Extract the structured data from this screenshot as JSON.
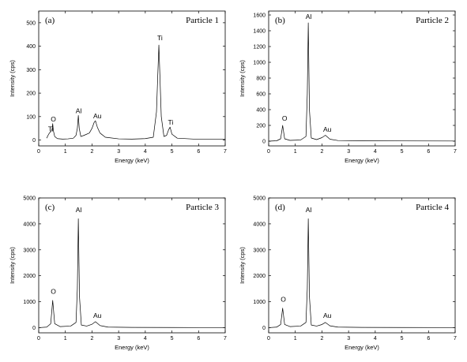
{
  "chart_data": [
    {
      "type": "line",
      "panel_label": "(a)",
      "title": "Particle 1",
      "xlabel": "Energy (keV)",
      "ylabel": "Intensity (cps)",
      "xlim": [
        0,
        7
      ],
      "ylim": [
        -25,
        550
      ],
      "xticks": [
        0,
        1,
        2,
        3,
        4,
        5,
        6,
        7
      ],
      "yticks": [
        0,
        100,
        200,
        300,
        400,
        500
      ],
      "series": [
        {
          "values_x": [
            0.3,
            0.35,
            0.4,
            0.45,
            0.5,
            0.525,
            0.55,
            0.6,
            0.7,
            0.9,
            1.1,
            1.3,
            1.4,
            1.45,
            1.487,
            1.52,
            1.58,
            1.7,
            1.9,
            2.0,
            2.08,
            2.13,
            2.2,
            2.3,
            2.5,
            3.0,
            3.5,
            4.0,
            4.3,
            4.42,
            4.51,
            4.6,
            4.7,
            4.8,
            4.88,
            4.93,
            5.0,
            5.2,
            6.0,
            7.0
          ],
          "values_y": [
            8,
            20,
            30,
            35,
            45,
            70,
            40,
            15,
            6,
            4,
            5,
            8,
            20,
            50,
            105,
            50,
            15,
            20,
            30,
            50,
            75,
            82,
            55,
            30,
            12,
            5,
            4,
            6,
            12,
            120,
            405,
            100,
            15,
            20,
            45,
            55,
            25,
            8,
            3,
            3
          ]
        }
      ],
      "annotations": [
        {
          "text": "O",
          "x": 0.55,
          "y": 80
        },
        {
          "text": "Ti",
          "x": 0.45,
          "y": 38
        },
        {
          "text": "Al",
          "x": 1.5,
          "y": 115
        },
        {
          "text": "Au",
          "x": 2.2,
          "y": 92
        },
        {
          "text": "Ti",
          "x": 4.55,
          "y": 425
        },
        {
          "text": "Ti",
          "x": 4.95,
          "y": 65
        }
      ]
    },
    {
      "type": "line",
      "panel_label": "(b)",
      "title": "Particle 2",
      "xlabel": "Energy (keV)",
      "ylabel": "Intensity (cps)",
      "xlim": [
        0,
        7
      ],
      "ylim": [
        -60,
        1650
      ],
      "xticks": [
        0,
        1,
        2,
        3,
        4,
        5,
        6,
        7
      ],
      "yticks": [
        0,
        200,
        400,
        600,
        800,
        1000,
        1200,
        1400,
        1600
      ],
      "series": [
        {
          "values_x": [
            0.0,
            0.3,
            0.45,
            0.525,
            0.6,
            0.8,
            1.2,
            1.4,
            1.45,
            1.487,
            1.53,
            1.6,
            1.8,
            2.0,
            2.13,
            2.3,
            2.6,
            3.5,
            5.0,
            7.0
          ],
          "values_y": [
            0,
            5,
            30,
            200,
            30,
            10,
            15,
            60,
            600,
            1500,
            400,
            40,
            20,
            45,
            75,
            25,
            8,
            5,
            3,
            2
          ]
        }
      ],
      "annotations": [
        {
          "text": "O",
          "x": 0.6,
          "y": 260
        },
        {
          "text": "Al",
          "x": 1.5,
          "y": 1550
        },
        {
          "text": "Au",
          "x": 2.2,
          "y": 120
        }
      ]
    },
    {
      "type": "line",
      "panel_label": "(c)",
      "title": "Particle 3",
      "xlabel": "Energy (keV)",
      "ylabel": "Intensity (cps)",
      "xlim": [
        0,
        7
      ],
      "ylim": [
        -200,
        5000
      ],
      "xticks": [
        0,
        1,
        2,
        3,
        4,
        5,
        6,
        7
      ],
      "yticks": [
        0,
        1000,
        2000,
        3000,
        4000,
        5000
      ],
      "series": [
        {
          "values_x": [
            0.0,
            0.3,
            0.45,
            0.525,
            0.6,
            0.8,
            1.2,
            1.4,
            1.45,
            1.487,
            1.53,
            1.6,
            1.8,
            2.0,
            2.13,
            2.3,
            2.6,
            3.5,
            5.0,
            7.0
          ],
          "values_y": [
            0,
            20,
            150,
            1050,
            150,
            40,
            60,
            200,
            1500,
            4200,
            1200,
            100,
            60,
            130,
            230,
            80,
            20,
            10,
            5,
            3
          ]
        }
      ],
      "annotations": [
        {
          "text": "O",
          "x": 0.55,
          "y": 1300
        },
        {
          "text": "Al",
          "x": 1.5,
          "y": 4450
        },
        {
          "text": "Au",
          "x": 2.2,
          "y": 380
        }
      ]
    },
    {
      "type": "line",
      "panel_label": "(d)",
      "title": "Particle 4",
      "xlabel": "Energy (keV)",
      "ylabel": "Intensity (cps)",
      "xlim": [
        0,
        7
      ],
      "ylim": [
        -200,
        5000
      ],
      "xticks": [
        0,
        1,
        2,
        3,
        4,
        5,
        6,
        7
      ],
      "yticks": [
        0,
        1000,
        2000,
        3000,
        4000,
        5000
      ],
      "series": [
        {
          "values_x": [
            0.0,
            0.3,
            0.45,
            0.525,
            0.6,
            0.8,
            1.2,
            1.4,
            1.45,
            1.487,
            1.53,
            1.6,
            1.8,
            2.0,
            2.13,
            2.3,
            2.6,
            3.5,
            5.0,
            7.0
          ],
          "values_y": [
            0,
            20,
            120,
            750,
            120,
            40,
            60,
            200,
            1500,
            4200,
            1200,
            100,
            60,
            120,
            200,
            70,
            20,
            10,
            5,
            3
          ]
        }
      ],
      "annotations": [
        {
          "text": "O",
          "x": 0.55,
          "y": 1000
        },
        {
          "text": "Al",
          "x": 1.5,
          "y": 4450
        },
        {
          "text": "Au",
          "x": 2.2,
          "y": 380
        }
      ]
    }
  ]
}
